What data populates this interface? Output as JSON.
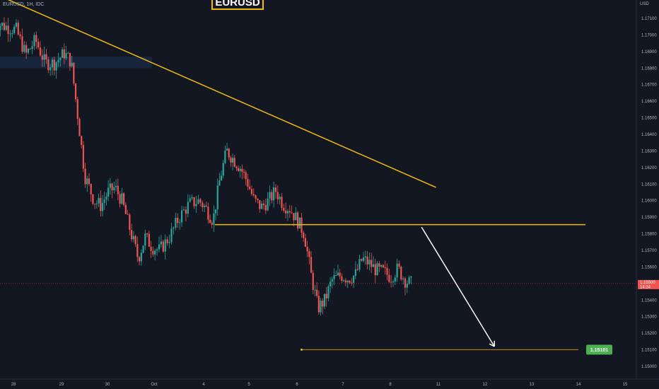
{
  "header": {
    "symbol": "EURUSD, 1H, IDC",
    "title_box": "EURUSD",
    "currency": "USD"
  },
  "colors": {
    "background": "#131722",
    "bull": "#26a69a",
    "bear": "#ef5350",
    "trendline": "#f0b90b",
    "arrow": "#ffffff",
    "target_label": "#4caf50"
  },
  "price_axis": {
    "current_price": "1.15500",
    "countdown": "14:24",
    "target_label": "1.15101"
  },
  "chart_data": {
    "type": "candlestick",
    "ylim": [
      1.1492,
      1.1721
    ],
    "y_ticks": [
      "1.17100",
      "1.17000",
      "1.16900",
      "1.16800",
      "1.16700",
      "1.16600",
      "1.16500",
      "1.16400",
      "1.16300",
      "1.16200",
      "1.16100",
      "1.16000",
      "1.15900",
      "1.15800",
      "1.15700",
      "1.15600",
      "1.15500",
      "1.15400",
      "1.15300",
      "1.15200",
      "1.15100",
      "1.15000"
    ],
    "x_ticks": [
      {
        "label": "28",
        "x": 0
      },
      {
        "label": "29",
        "x": 1
      },
      {
        "label": "30",
        "x": 2
      },
      {
        "label": "Oct",
        "x": 3
      },
      {
        "label": "4",
        "x": 4
      },
      {
        "label": "5",
        "x": 5
      },
      {
        "label": "6",
        "x": 6
      },
      {
        "label": "7",
        "x": 7
      },
      {
        "label": "8",
        "x": 8
      },
      {
        "label": "11",
        "x": 9
      },
      {
        "label": "12",
        "x": 10
      },
      {
        "label": "13",
        "x": 11
      },
      {
        "label": "14",
        "x": 12
      },
      {
        "label": "15",
        "x": 13
      }
    ],
    "close_path": [
      [
        -0.4,
        1.1708
      ],
      [
        0.1,
        1.1703
      ],
      [
        0.3,
        1.1688
      ],
      [
        0.5,
        1.1697
      ],
      [
        0.7,
        1.1683
      ],
      [
        0.9,
        1.1683
      ],
      [
        1.1,
        1.1689
      ],
      [
        1.25,
        1.1684
      ],
      [
        1.4,
        1.165
      ],
      [
        1.55,
        1.1615
      ],
      [
        1.75,
        1.16
      ],
      [
        1.9,
        1.1597
      ],
      [
        2.05,
        1.1605
      ],
      [
        2.2,
        1.1608
      ],
      [
        2.35,
        1.16
      ],
      [
        2.55,
        1.158
      ],
      [
        2.7,
        1.1565
      ],
      [
        2.85,
        1.1578
      ],
      [
        3.0,
        1.1572
      ],
      [
        3.15,
        1.157
      ],
      [
        3.35,
        1.1578
      ],
      [
        3.55,
        1.159
      ],
      [
        3.75,
        1.1598
      ],
      [
        3.95,
        1.16
      ],
      [
        4.1,
        1.1595
      ],
      [
        4.25,
        1.1588
      ],
      [
        4.4,
        1.1613
      ],
      [
        4.55,
        1.163
      ],
      [
        4.7,
        1.1625
      ],
      [
        4.85,
        1.162
      ],
      [
        5.0,
        1.1612
      ],
      [
        5.15,
        1.16
      ],
      [
        5.3,
        1.1596
      ],
      [
        5.45,
        1.16
      ],
      [
        5.6,
        1.1606
      ],
      [
        5.75,
        1.1598
      ],
      [
        5.9,
        1.1595
      ],
      [
        6.05,
        1.1588
      ],
      [
        6.2,
        1.158
      ],
      [
        6.35,
        1.1555
      ],
      [
        6.5,
        1.1535
      ],
      [
        6.65,
        1.154
      ],
      [
        6.8,
        1.1552
      ],
      [
        7.0,
        1.1555
      ],
      [
        7.15,
        1.1553
      ],
      [
        7.3,
        1.1555
      ],
      [
        7.45,
        1.1565
      ],
      [
        7.6,
        1.1562
      ],
      [
        7.75,
        1.1558
      ],
      [
        7.9,
        1.1557
      ],
      [
        8.05,
        1.1554
      ],
      [
        8.2,
        1.1559
      ],
      [
        8.35,
        1.1552
      ],
      [
        8.45,
        1.155
      ]
    ],
    "current_price": 1.155,
    "annotations": {
      "downtrend_line": {
        "from": [
          -0.4,
          1.1725
        ],
        "to": [
          8.95,
          1.1608
        ]
      },
      "support_line": {
        "from": [
          4.25,
          1.15855
        ],
        "to": [
          12.15,
          1.15855
        ]
      },
      "target_line": {
        "from": [
          6.1,
          1.15101
        ],
        "to": [
          12.0,
          1.15101
        ]
      },
      "projection_arrow": {
        "from": [
          8.65,
          1.1584
        ],
        "to": [
          10.2,
          1.1512
        ]
      },
      "resistance_zone": {
        "x": [
          -0.4,
          2.95
        ],
        "y": [
          1.168,
          1.1687
        ]
      }
    }
  }
}
